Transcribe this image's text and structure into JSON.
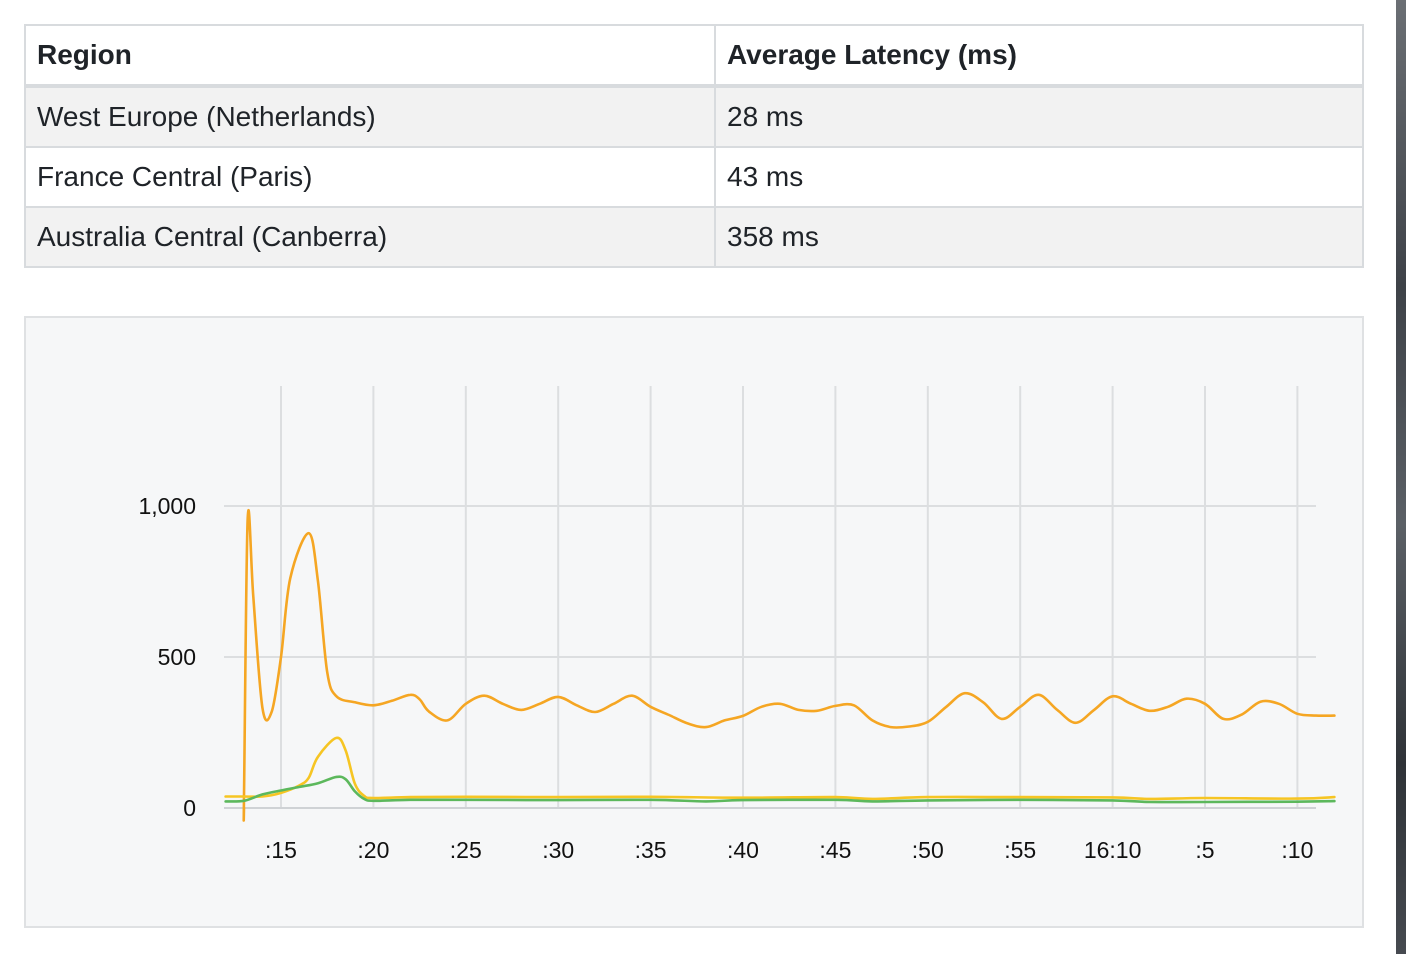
{
  "table": {
    "headers": [
      "Region",
      "Average Latency (ms)"
    ],
    "rows": [
      {
        "region": "West Europe (Netherlands)",
        "latency": "28 ms"
      },
      {
        "region": "France Central (Paris)",
        "latency": "43 ms"
      },
      {
        "region": "Australia Central (Canberra)",
        "latency": "358 ms"
      }
    ]
  },
  "chart_data": {
    "type": "line",
    "title": "",
    "xlabel": "",
    "ylabel": "",
    "x_ticks": [
      ":15",
      ":20",
      ":25",
      ":30",
      ":35",
      ":40",
      ":45",
      ":50",
      ":55",
      "16:10",
      ":5",
      ":10"
    ],
    "x_range": [
      12,
      73
    ],
    "y_ticks": [
      "0",
      "500",
      "1,000"
    ],
    "y_tick_values": [
      0,
      500,
      1000
    ],
    "ylim": [
      0,
      1400
    ],
    "grid": true,
    "legend": "none",
    "series": [
      {
        "color": "#f5a623",
        "points": [
          [
            13,
            0
          ],
          [
            13,
            40
          ],
          [
            13.2,
            960
          ],
          [
            13.5,
            700
          ],
          [
            14,
            330
          ],
          [
            14.5,
            320
          ],
          [
            15,
            500
          ],
          [
            15.5,
            760
          ],
          [
            16.5,
            910
          ],
          [
            17,
            750
          ],
          [
            17.5,
            450
          ],
          [
            18,
            370
          ],
          [
            19,
            350
          ],
          [
            20,
            340
          ],
          [
            21,
            355
          ],
          [
            22,
            375
          ],
          [
            22.5,
            360
          ],
          [
            23,
            320
          ],
          [
            24,
            290
          ],
          [
            25,
            345
          ],
          [
            26,
            372
          ],
          [
            27,
            345
          ],
          [
            28,
            325
          ],
          [
            29,
            345
          ],
          [
            30,
            368
          ],
          [
            31,
            340
          ],
          [
            32,
            318
          ],
          [
            33,
            345
          ],
          [
            34,
            372
          ],
          [
            35,
            335
          ],
          [
            36,
            308
          ],
          [
            37,
            280
          ],
          [
            38,
            268
          ],
          [
            39,
            290
          ],
          [
            40,
            305
          ],
          [
            41,
            335
          ],
          [
            42,
            345
          ],
          [
            43,
            325
          ],
          [
            44,
            322
          ],
          [
            45,
            338
          ],
          [
            46,
            340
          ],
          [
            47,
            290
          ],
          [
            48,
            268
          ],
          [
            49,
            270
          ],
          [
            50,
            285
          ],
          [
            51,
            335
          ],
          [
            52,
            380
          ],
          [
            53,
            350
          ],
          [
            54,
            295
          ],
          [
            55,
            335
          ],
          [
            56,
            375
          ],
          [
            57,
            325
          ],
          [
            58,
            282
          ],
          [
            59,
            325
          ],
          [
            60,
            370
          ],
          [
            61,
            345
          ],
          [
            62,
            322
          ],
          [
            63,
            335
          ],
          [
            64,
            362
          ],
          [
            65,
            345
          ],
          [
            66,
            295
          ],
          [
            67,
            310
          ],
          [
            68,
            352
          ],
          [
            69,
            345
          ],
          [
            70,
            312
          ],
          [
            71,
            306
          ],
          [
            72,
            306
          ]
        ]
      },
      {
        "color": "#f6c523",
        "points": [
          [
            12,
            38
          ],
          [
            13,
            38
          ],
          [
            14,
            38
          ],
          [
            15,
            50
          ],
          [
            16,
            75
          ],
          [
            16.5,
            100
          ],
          [
            17,
            170
          ],
          [
            18,
            232
          ],
          [
            18.5,
            190
          ],
          [
            19,
            80
          ],
          [
            19.5,
            40
          ],
          [
            20,
            33
          ],
          [
            22,
            36
          ],
          [
            25,
            37
          ],
          [
            30,
            36
          ],
          [
            35,
            37
          ],
          [
            40,
            34
          ],
          [
            45,
            36
          ],
          [
            47,
            30
          ],
          [
            50,
            36
          ],
          [
            55,
            36
          ],
          [
            60,
            35
          ],
          [
            62,
            30
          ],
          [
            65,
            33
          ],
          [
            70,
            31
          ],
          [
            72,
            36
          ]
        ]
      },
      {
        "color": "#5cb85c",
        "points": [
          [
            12,
            22
          ],
          [
            13,
            24
          ],
          [
            14,
            45
          ],
          [
            15,
            58
          ],
          [
            16,
            70
          ],
          [
            17,
            82
          ],
          [
            18,
            103
          ],
          [
            18.5,
            95
          ],
          [
            19,
            55
          ],
          [
            19.5,
            30
          ],
          [
            20,
            24
          ],
          [
            22,
            27
          ],
          [
            25,
            27
          ],
          [
            30,
            26
          ],
          [
            35,
            27
          ],
          [
            38,
            22
          ],
          [
            40,
            26
          ],
          [
            45,
            27
          ],
          [
            47,
            22
          ],
          [
            50,
            25
          ],
          [
            55,
            27
          ],
          [
            60,
            25
          ],
          [
            62,
            20
          ],
          [
            65,
            20
          ],
          [
            70,
            21
          ],
          [
            72,
            23
          ]
        ]
      }
    ]
  }
}
